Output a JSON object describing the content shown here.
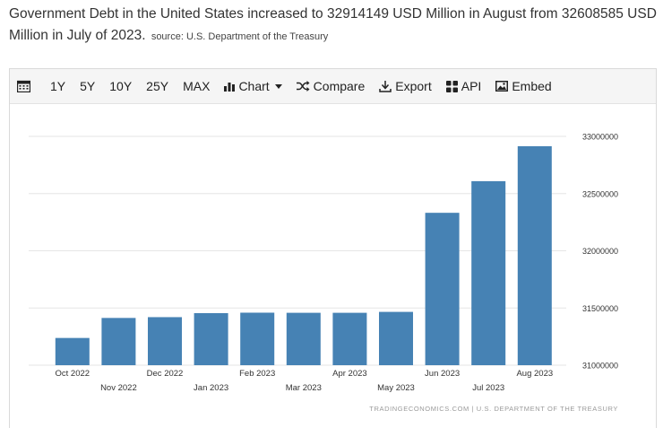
{
  "headline": {
    "text": "Government Debt in the United States increased to 32914149 USD Million in August from 32608585 USD Million in July of 2023.",
    "source": "source: U.S. Department of the Treasury"
  },
  "toolbar": {
    "calendar_icon": "calendar-icon",
    "ranges": [
      "1Y",
      "5Y",
      "10Y",
      "25Y",
      "MAX"
    ],
    "chart_label": "Chart",
    "compare_label": "Compare",
    "export_label": "Export",
    "api_label": "API",
    "embed_label": "Embed"
  },
  "chart_data": {
    "type": "bar",
    "title": "Government Debt in the United States",
    "categories": [
      "Oct 2022",
      "Nov 2022",
      "Dec 2022",
      "Jan 2023",
      "Feb 2023",
      "Mar 2023",
      "Apr 2023",
      "May 2023",
      "Jun 2023",
      "Jul 2023",
      "Aug 2023"
    ],
    "values": [
      31238000,
      31413000,
      31420000,
      31455000,
      31459000,
      31458000,
      31458000,
      31466000,
      32332000,
      32608585,
      32914149
    ],
    "unit": "USD Million",
    "ylim": [
      31000000,
      33000000
    ],
    "yticks": [
      31000000,
      31500000,
      32000000,
      32500000,
      33000000
    ],
    "ytick_labels": [
      "31000000",
      "31500000",
      "32000000",
      "32500000",
      "33000000"
    ],
    "grid": true,
    "bar_color": "#4682b4",
    "xlabel": "",
    "ylabel": ""
  },
  "footer": {
    "credit": "TRADINGECONOMICS.COM | U.S. DEPARTMENT OF THE TREASURY"
  }
}
